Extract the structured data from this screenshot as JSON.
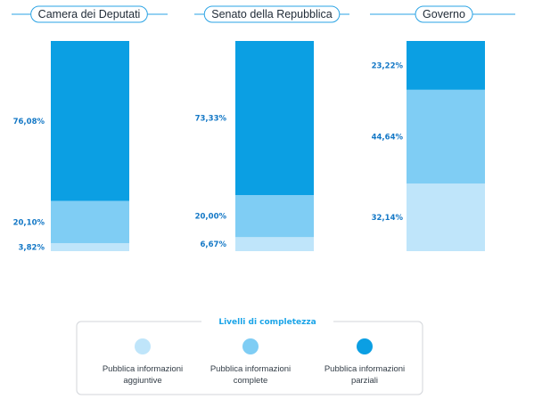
{
  "chart_data": {
    "type": "bar",
    "stacked": true,
    "normalized": true,
    "ylim": [
      0,
      100
    ],
    "categories": [
      "Camera  dei Deputati",
      "Senato della Repubblica",
      "Governo"
    ],
    "series": [
      {
        "key": "aggiuntive",
        "color": "#bfe5fa",
        "values": [
          3.82,
          6.67,
          32.14
        ],
        "labels": [
          "3,82%",
          "6,67%",
          "32,14%"
        ]
      },
      {
        "key": "complete",
        "color": "#7fcdf4",
        "values": [
          20.1,
          20.0,
          44.64
        ],
        "labels": [
          "20,10%",
          "20,00%",
          "44,64%"
        ]
      },
      {
        "key": "parziali",
        "color": "#0b9fe3",
        "values": [
          76.08,
          73.33,
          23.22
        ],
        "labels": [
          "76,08%",
          "73,33%",
          "23,22%"
        ]
      }
    ],
    "legend": {
      "title": "Livelli di completezza",
      "items": [
        {
          "color": "#bfe5fa",
          "lines": [
            "Pubblica informazioni",
            "aggiuntive"
          ]
        },
        {
          "color": "#7fcdf4",
          "lines": [
            "Pubblica informazioni",
            "complete"
          ]
        },
        {
          "color": "#0b9fe3",
          "lines": [
            "Pubblica informazioni",
            "parziali"
          ]
        }
      ]
    }
  }
}
